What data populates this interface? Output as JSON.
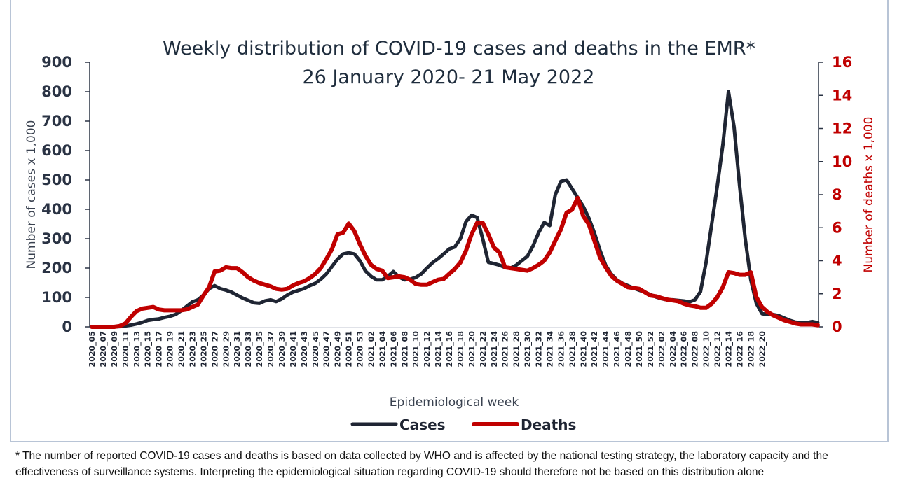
{
  "chart_data": {
    "type": "line",
    "title": "Weekly distribution of COVID-19 cases and deaths in the EMR*",
    "subtitle": "26 January 2020- 21 May 2022",
    "xlabel": "Epidemiological week",
    "ylabel": "Number of cases x 1,000",
    "y2label": "Number of deaths x 1,000",
    "ylim": [
      0,
      900
    ],
    "y2lim": [
      0,
      16
    ],
    "yticks": [
      "0",
      "100",
      "200",
      "300",
      "400",
      "500",
      "600",
      "700",
      "800",
      "900"
    ],
    "y2ticks": [
      "0",
      "2",
      "4",
      "6",
      "8",
      "10",
      "12",
      "14",
      "16"
    ],
    "grid": false,
    "legend_position": "bottom",
    "xtick_labels": [
      "2020_05",
      "2020_07",
      "2020_09",
      "2020_11",
      "2020_13",
      "2020_15",
      "2020_17",
      "2020_19",
      "2020_21",
      "2020_23",
      "2020_25",
      "2020_27",
      "2020_29",
      "2020_31",
      "2020_33",
      "2020_35",
      "2020_37",
      "2020_39",
      "2020_41",
      "2020_43",
      "2020_45",
      "2020_47",
      "2020_49",
      "2020_51",
      "2020_53",
      "2021_02",
      "2021_04",
      "2021_06",
      "2021_08",
      "2021_10",
      "2021_12",
      "2021_14",
      "2021_16",
      "2021_18",
      "2021_20",
      "2021_22",
      "2021_24",
      "2021_26",
      "2021_28",
      "2021_30",
      "2021_32",
      "2021_34",
      "2021_36",
      "2021_38",
      "2021_40",
      "2021_42",
      "2021_44",
      "2021_46",
      "2021_48",
      "2021_50",
      "2021_52",
      "2022_02",
      "2022_04",
      "2022_06",
      "2022_08",
      "2022_10",
      "2022_12",
      "2022_14",
      "2022_16",
      "2022_18",
      "2022_20"
    ],
    "x_start": "2020_05",
    "x_end": "2022_20",
    "series": [
      {
        "name": "Cases",
        "axis": "left",
        "color": "#1f2533",
        "values": [
          0,
          0,
          0,
          0,
          0,
          1,
          3,
          6,
          10,
          15,
          22,
          25,
          27,
          32,
          36,
          42,
          55,
          70,
          85,
          92,
          108,
          130,
          140,
          130,
          125,
          118,
          108,
          98,
          90,
          82,
          80,
          88,
          92,
          86,
          95,
          108,
          118,
          124,
          130,
          140,
          148,
          162,
          180,
          205,
          230,
          248,
          252,
          248,
          225,
          190,
          172,
          160,
          160,
          172,
          188,
          170,
          160,
          162,
          168,
          180,
          200,
          218,
          232,
          248,
          265,
          272,
          300,
          358,
          380,
          372,
          300,
          220,
          215,
          210,
          202,
          200,
          210,
          225,
          240,
          275,
          320,
          355,
          345,
          450,
          495,
          500,
          470,
          440,
          410,
          370,
          320,
          260,
          210,
          180,
          160,
          148,
          140,
          132,
          125,
          118,
          110,
          102,
          96,
          92,
          92,
          90,
          88,
          85,
          92,
          120,
          220,
          350,
          480,
          620,
          800,
          680,
          480,
          300,
          160,
          80,
          45,
          42,
          42,
          38,
          30,
          22,
          16,
          14,
          14,
          18,
          14
        ],
        "days_placeholder": null
      },
      {
        "name": "Deaths",
        "axis": "right",
        "color": "#c00000",
        "values": [
          0,
          0,
          0,
          0,
          0,
          0.05,
          0.2,
          0.6,
          0.95,
          1.1,
          1.15,
          1.2,
          1.05,
          1.0,
          1.0,
          1.0,
          1.0,
          1.05,
          1.2,
          1.35,
          1.9,
          2.4,
          3.35,
          3.4,
          3.6,
          3.55,
          3.55,
          3.3,
          3.0,
          2.8,
          2.65,
          2.55,
          2.45,
          2.3,
          2.25,
          2.3,
          2.5,
          2.65,
          2.75,
          2.95,
          3.2,
          3.55,
          4.1,
          4.7,
          5.6,
          5.7,
          6.25,
          5.8,
          5.0,
          4.3,
          3.75,
          3.5,
          3.4,
          2.95,
          3.0,
          3.05,
          3.0,
          2.85,
          2.6,
          2.55,
          2.55,
          2.7,
          2.85,
          2.9,
          3.2,
          3.5,
          3.9,
          4.6,
          5.6,
          6.3,
          6.3,
          5.6,
          4.8,
          4.5,
          3.6,
          3.55,
          3.5,
          3.45,
          3.4,
          3.55,
          3.75,
          4.0,
          4.5,
          5.2,
          5.9,
          6.9,
          7.1,
          7.8,
          6.7,
          6.2,
          5.2,
          4.2,
          3.6,
          3.1,
          2.8,
          2.6,
          2.4,
          2.35,
          2.3,
          2.1,
          1.9,
          1.85,
          1.75,
          1.65,
          1.6,
          1.55,
          1.4,
          1.3,
          1.25,
          1.15,
          1.15,
          1.4,
          1.8,
          2.4,
          3.3,
          3.25,
          3.15,
          3.15,
          3.3,
          1.8,
          1.2,
          0.9,
          0.7,
          0.55,
          0.4,
          0.3,
          0.2,
          0.15,
          0.15,
          0.15,
          0.1
        ]
      }
    ]
  },
  "footnote": "* The number of reported COVID-19 cases and deaths is based on data collected by WHO and is affected by the national testing strategy, the laboratory capacity and the effectiveness of surveillance systems. Interpreting the epidemiological situation regarding COVID-19 should therefore not be based on this distribution alone"
}
